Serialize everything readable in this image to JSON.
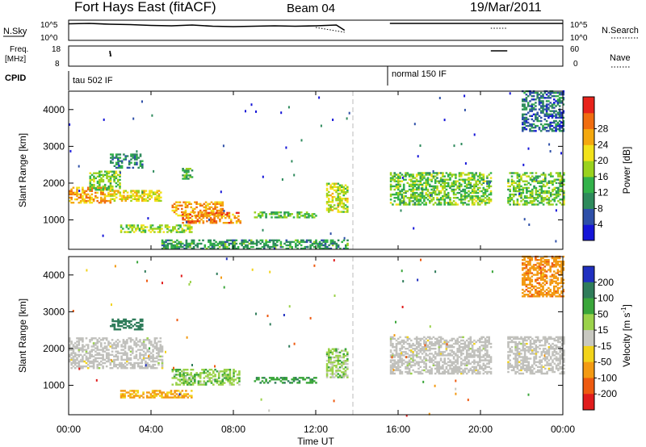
{
  "header": {
    "station": "Fort Hays East (fitACF)",
    "beam": "Beam 04",
    "date": "19/Mar/2011"
  },
  "noise_panel": {
    "left_label": "N.Sky",
    "left_ticks": [
      "10^5",
      "10^0"
    ],
    "right_ticks": [
      "10^5",
      "10^0"
    ],
    "right_label": "N.Search"
  },
  "freq_panel": {
    "left_label_line1": "Freq.",
    "left_label_line2": "[MHz]",
    "left_ticks": [
      "18",
      "8"
    ],
    "right_ticks": [
      "60",
      "0"
    ],
    "right_label": "Nave"
  },
  "cpid": {
    "label": "CPID",
    "modes": [
      "tau 502 IF",
      "normal 150 IF"
    ]
  },
  "x_axis": {
    "label": "Time UT",
    "ticks": [
      "00:00",
      "04:00",
      "08:00",
      "12:00",
      "16:00",
      "20:00",
      "00:00"
    ]
  },
  "power_panel": {
    "ylabel": "Slant Range [km]",
    "yticks": [
      "1000",
      "2000",
      "3000",
      "4000"
    ],
    "colorbar_label": "Power [dB]",
    "colorbar_ticks": [
      "4",
      "8",
      "12",
      "16",
      "20",
      "24",
      "28"
    ],
    "colors": [
      "#1515d8",
      "#2e4fa8",
      "#2e8a5c",
      "#33b24a",
      "#9ad21e",
      "#f2e21a",
      "#f4a80f",
      "#f06d10",
      "#e8231b"
    ]
  },
  "velocity_panel": {
    "ylabel": "Slant Range [km]",
    "yticks": [
      "1000",
      "2000",
      "3000",
      "4000"
    ],
    "colorbar_label_main": "Velocity [m s",
    "colorbar_label_exp": "-1",
    "colorbar_label_end": "]",
    "colorbar_ticks": [
      "200",
      "100",
      "50",
      "15",
      "-15",
      "-50",
      "-100",
      "-200"
    ],
    "colors": [
      "#2030c0",
      "#2f7c5a",
      "#3aa63a",
      "#9bd24a",
      "#c8c8c0",
      "#f2d31a",
      "#f39a12",
      "#ee5a10",
      "#e01c1c"
    ],
    "ground_scatter_color": "#c0c0bc"
  },
  "chart_data": {
    "type": "heatmap",
    "time_hours_range": [
      0,
      24
    ],
    "range_km_range": [
      200,
      4500
    ],
    "data_gap_hours": [
      13.6,
      15.6
    ],
    "gap2_hours": [
      20.6,
      21.3
    ],
    "noise_sky_log": [
      [
        0,
        4.1
      ],
      [
        1,
        4.2
      ],
      [
        2,
        4.0
      ],
      [
        3,
        3.9
      ],
      [
        4,
        3.7
      ],
      [
        5,
        3.6
      ],
      [
        6,
        3.8
      ],
      [
        7,
        3.5
      ],
      [
        8,
        3.4
      ],
      [
        9,
        3.5
      ],
      [
        10,
        3.6
      ],
      [
        11,
        3.5
      ],
      [
        12,
        3.6
      ],
      [
        13,
        3.8
      ],
      [
        13.4,
        2.5
      ],
      [
        15.6,
        4.2
      ],
      [
        17,
        4.2
      ],
      [
        18,
        4.2
      ],
      [
        19,
        4.2
      ],
      [
        20.5,
        4.2
      ],
      [
        21.3,
        4.2
      ],
      [
        22,
        4.2
      ],
      [
        23,
        4.2
      ],
      [
        24,
        4.2
      ]
    ],
    "noise_search_log": [
      [
        0,
        3.6
      ],
      [
        3,
        3.4
      ],
      [
        6,
        3.3
      ],
      [
        9,
        3.2
      ],
      [
        12,
        3.2
      ],
      [
        13.4,
        2.0
      ],
      [
        15.6,
        3.0
      ],
      [
        18,
        3.0
      ],
      [
        20.5,
        3.0
      ],
      [
        21.3,
        3.0
      ],
      [
        24,
        3.0
      ]
    ],
    "frequency_mhz": [
      [
        0,
        16.5
      ],
      [
        2,
        16.5
      ],
      [
        2.05,
        13.0
      ],
      [
        13.2,
        13.0
      ],
      [
        15.6,
        16.5
      ],
      [
        20.5,
        16.5
      ],
      [
        21.3,
        16.5
      ],
      [
        24,
        16.5
      ]
    ],
    "nave": [
      [
        0,
        40
      ],
      [
        2,
        40
      ],
      [
        2,
        30
      ],
      [
        13.2,
        30
      ],
      [
        15.6,
        55
      ],
      [
        24,
        55
      ]
    ],
    "power_regions": [
      {
        "t0": 0.0,
        "t1": 2.0,
        "r0": 1450,
        "r1": 1900,
        "db": 26
      },
      {
        "t0": 1.0,
        "t1": 2.5,
        "r0": 1800,
        "r1": 2300,
        "db": 16
      },
      {
        "t0": 2.0,
        "t1": 3.6,
        "r0": 2400,
        "r1": 2800,
        "db": 10
      },
      {
        "t0": 2.0,
        "t1": 4.5,
        "r0": 1500,
        "r1": 1800,
        "db": 22
      },
      {
        "t0": 5.5,
        "t1": 6.0,
        "r0": 2100,
        "r1": 2400,
        "db": 14
      },
      {
        "t0": 5.0,
        "t1": 7.5,
        "r0": 1100,
        "r1": 1500,
        "db": 26
      },
      {
        "t0": 5.5,
        "t1": 8.3,
        "r0": 900,
        "r1": 1200,
        "db": 28
      },
      {
        "t0": 2.5,
        "t1": 6.0,
        "r0": 650,
        "r1": 850,
        "db": 18
      },
      {
        "t0": 4.5,
        "t1": 13.5,
        "r0": 200,
        "r1": 450,
        "db": 12
      },
      {
        "t0": 9.0,
        "t1": 12.0,
        "r0": 1050,
        "r1": 1200,
        "db": 14
      },
      {
        "t0": 12.5,
        "t1": 13.5,
        "r0": 1200,
        "r1": 2000,
        "db": 20
      },
      {
        "t0": 15.6,
        "t1": 20.5,
        "r0": 1400,
        "r1": 2300,
        "db": 16
      },
      {
        "t0": 21.3,
        "t1": 24.0,
        "r0": 1400,
        "r1": 2300,
        "db": 16
      },
      {
        "t0": 22.0,
        "t1": 24.0,
        "r0": 3400,
        "r1": 4500,
        "db": 8
      }
    ],
    "velocity_regions": [
      {
        "t0": 0.0,
        "t1": 4.5,
        "r0": 1450,
        "r1": 2300,
        "vel": 0
      },
      {
        "t0": 2.0,
        "t1": 3.6,
        "r0": 2500,
        "r1": 2800,
        "vel": 150
      },
      {
        "t0": 5.0,
        "t1": 8.3,
        "r0": 1000,
        "r1": 1450,
        "vel": 40
      },
      {
        "t0": 2.5,
        "t1": 6.0,
        "r0": 650,
        "r1": 850,
        "vel": -60
      },
      {
        "t0": 9.0,
        "t1": 12.0,
        "r0": 1050,
        "r1": 1200,
        "vel": 80
      },
      {
        "t0": 12.5,
        "t1": 13.5,
        "r0": 1200,
        "r1": 2000,
        "vel": 30
      },
      {
        "t0": 15.6,
        "t1": 20.5,
        "r0": 1300,
        "r1": 2300,
        "vel": 0
      },
      {
        "t0": 21.3,
        "t1": 24.0,
        "r0": 1300,
        "r1": 2300,
        "vel": 0
      },
      {
        "t0": 22.0,
        "t1": 24.0,
        "r0": 3400,
        "r1": 4500,
        "vel": -80
      }
    ]
  }
}
